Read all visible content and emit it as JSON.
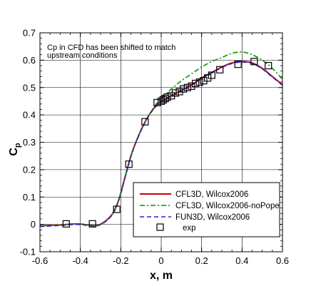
{
  "chart_data": {
    "type": "line",
    "title": "",
    "xlabel": "x, m",
    "ylabel_main": "C",
    "ylabel_sub": "p",
    "xlim": [
      -0.6,
      0.6
    ],
    "ylim": [
      -0.1,
      0.7
    ],
    "xticks": [
      -0.6,
      -0.4,
      -0.2,
      0,
      0.2,
      0.4,
      0.6
    ],
    "yticks": [
      -0.1,
      0,
      0.1,
      0.2,
      0.3,
      0.4,
      0.5,
      0.6,
      0.7
    ],
    "xtick_labels": [
      "-0.6",
      "-0.4",
      "-0.2",
      "0",
      "0.2",
      "0.4",
      "0.6"
    ],
    "ytick_labels": [
      "-0.1",
      "0",
      "0.1",
      "0.2",
      "0.3",
      "0.4",
      "0.5",
      "0.6",
      "0.7"
    ],
    "grid": true,
    "annotation_lines": [
      "Cp in CFD has been shifted to match",
      "upstream conditions"
    ],
    "legend_position": "bottom-right",
    "series": [
      {
        "name": "CFL3D, Wilcox2006",
        "color": "#cc0000",
        "style": "solid",
        "x": [
          -0.6,
          -0.5,
          -0.42,
          -0.36,
          -0.32,
          -0.28,
          -0.24,
          -0.21,
          -0.18,
          -0.15,
          -0.12,
          -0.09,
          -0.06,
          -0.03,
          0.0,
          0.05,
          0.1,
          0.15,
          0.2,
          0.25,
          0.3,
          0.35,
          0.4,
          0.45,
          0.5,
          0.55,
          0.6
        ],
        "y": [
          -0.005,
          -0.002,
          0.002,
          -0.002,
          -0.004,
          0.01,
          0.04,
          0.09,
          0.17,
          0.25,
          0.31,
          0.36,
          0.4,
          0.43,
          0.45,
          0.47,
          0.49,
          0.51,
          0.535,
          0.555,
          0.575,
          0.59,
          0.595,
          0.59,
          0.57,
          0.54,
          0.51
        ]
      },
      {
        "name": "CFL3D, Wilcox2006-noPope",
        "color": "#009900",
        "style": "dashdot",
        "x": [
          -0.6,
          -0.5,
          -0.42,
          -0.36,
          -0.32,
          -0.28,
          -0.24,
          -0.21,
          -0.18,
          -0.15,
          -0.12,
          -0.09,
          -0.06,
          -0.03,
          0.0,
          0.05,
          0.1,
          0.15,
          0.2,
          0.25,
          0.3,
          0.35,
          0.4,
          0.45,
          0.5,
          0.55,
          0.6
        ],
        "y": [
          -0.005,
          -0.002,
          0.002,
          -0.002,
          -0.004,
          0.01,
          0.04,
          0.09,
          0.17,
          0.25,
          0.31,
          0.36,
          0.4,
          0.435,
          0.46,
          0.495,
          0.525,
          0.55,
          0.575,
          0.595,
          0.61,
          0.625,
          0.63,
          0.62,
          0.6,
          0.57,
          0.53
        ]
      },
      {
        "name": "FUN3D, Wilcox2006",
        "color": "#2222dd",
        "style": "dashed",
        "x": [
          -0.6,
          -0.5,
          -0.42,
          -0.36,
          -0.32,
          -0.28,
          -0.24,
          -0.21,
          -0.18,
          -0.15,
          -0.12,
          -0.09,
          -0.06,
          -0.03,
          0.0,
          0.05,
          0.1,
          0.15,
          0.2,
          0.25,
          0.3,
          0.35,
          0.4,
          0.45,
          0.5,
          0.55,
          0.6
        ],
        "y": [
          -0.008,
          -0.004,
          0.0,
          -0.004,
          -0.006,
          0.008,
          0.038,
          0.088,
          0.168,
          0.248,
          0.308,
          0.358,
          0.398,
          0.428,
          0.448,
          0.468,
          0.488,
          0.508,
          0.533,
          0.553,
          0.573,
          0.588,
          0.593,
          0.588,
          0.568,
          0.538,
          0.508
        ]
      }
    ],
    "exp": {
      "name": "exp",
      "color": "#000000",
      "x": [
        -0.47,
        -0.34,
        -0.22,
        -0.16,
        -0.08,
        -0.02,
        0.0,
        0.01,
        0.02,
        0.03,
        0.05,
        0.07,
        0.09,
        0.11,
        0.13,
        0.15,
        0.17,
        0.19,
        0.21,
        0.23,
        0.25,
        0.29,
        0.38,
        0.46,
        0.53
      ],
      "y": [
        0.002,
        0.002,
        0.055,
        0.22,
        0.375,
        0.445,
        0.45,
        0.455,
        0.46,
        0.465,
        0.47,
        0.48,
        0.485,
        0.495,
        0.5,
        0.505,
        0.515,
        0.52,
        0.525,
        0.535,
        0.545,
        0.565,
        0.585,
        0.595,
        0.58
      ]
    }
  }
}
